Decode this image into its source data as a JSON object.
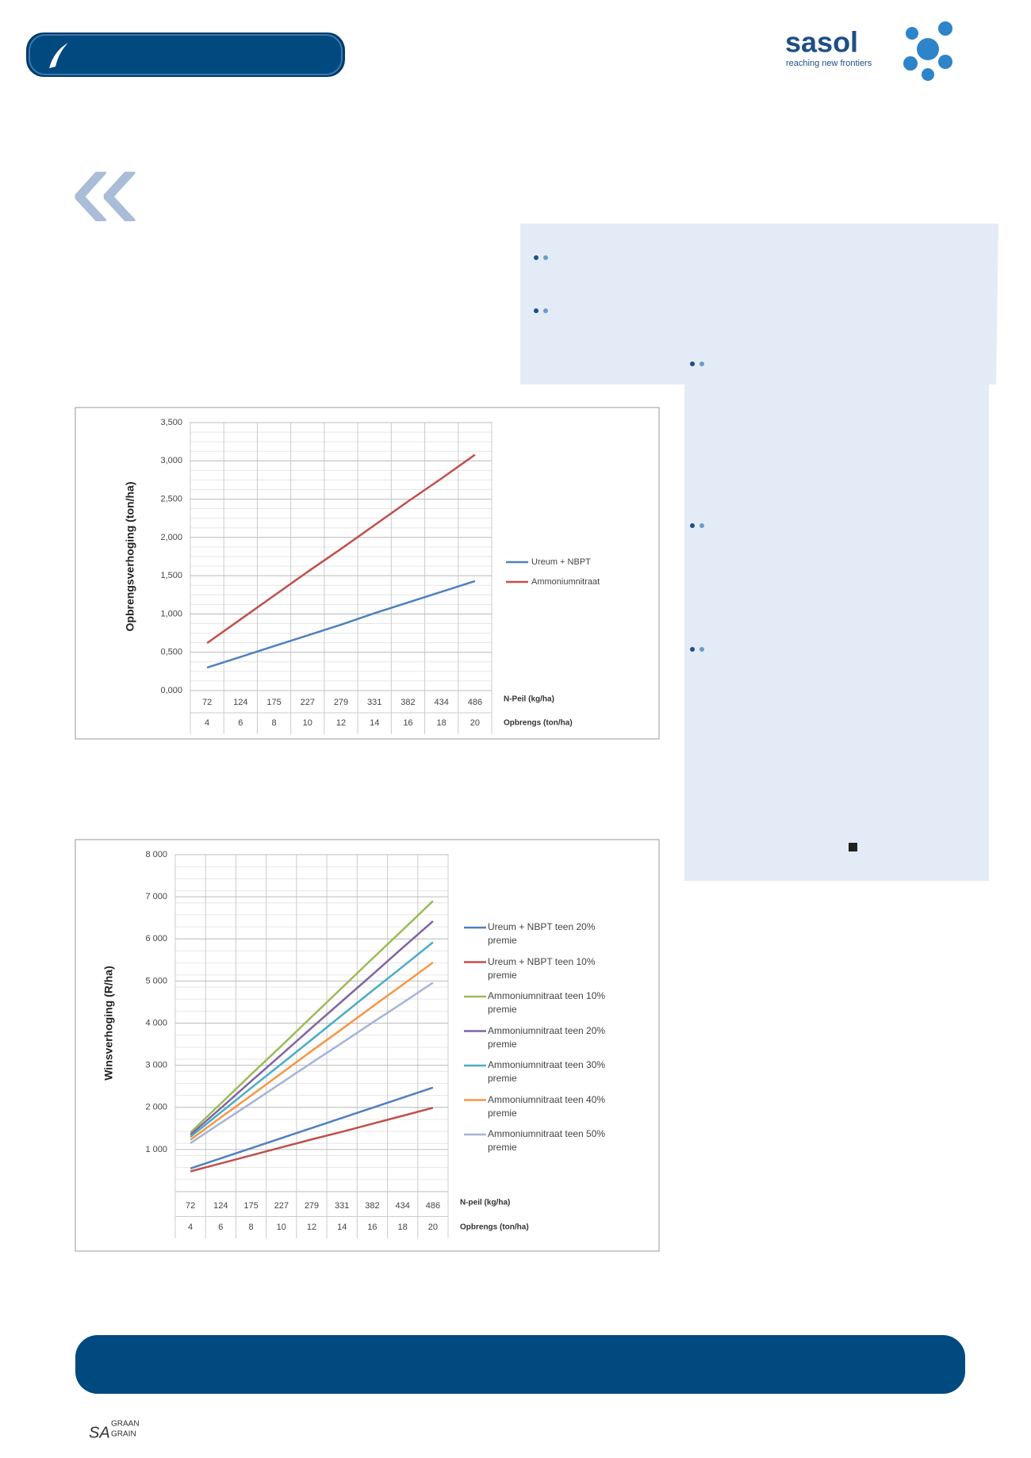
{
  "header": {
    "logo": "sasol",
    "tagline": "reaching new frontiers"
  },
  "footer": {
    "logo_sa": "SA",
    "logo_top": "GRAAN",
    "logo_bottom": "GRAIN"
  },
  "chart_data": [
    {
      "type": "line",
      "ylabel": "Opbrengsverhoging (ton/ha)",
      "categories": [
        "72",
        "124",
        "175",
        "227",
        "279",
        "331",
        "382",
        "434",
        "486"
      ],
      "categories2": [
        "4",
        "6",
        "8",
        "10",
        "12",
        "14",
        "16",
        "18",
        "20"
      ],
      "x_label": "N-Peil (kg/ha)",
      "x2_label": "Opbrengs (ton/ha)",
      "ylim": [
        0,
        3.5
      ],
      "yticks": [
        {
          "value": 0,
          "label": "0,000"
        },
        {
          "value": 0.5,
          "label": "0,500"
        },
        {
          "value": 1,
          "label": "1,000"
        },
        {
          "value": 1.5,
          "label": "1,500"
        },
        {
          "value": 2,
          "label": "2,000"
        },
        {
          "value": 2.5,
          "label": "2,500"
        },
        {
          "value": 3,
          "label": "3,000"
        },
        {
          "value": 3.5,
          "label": "3,500"
        }
      ],
      "grid": true,
      "series": [
        {
          "name": "Ureum + NBPT",
          "color": "#4f81bd",
          "values": [
            0.3,
            0.44,
            0.58,
            0.72,
            0.86,
            1.01,
            1.15,
            1.29,
            1.43
          ]
        },
        {
          "name": "Ammoniumnitraat",
          "color": "#c0504d",
          "values": [
            0.62,
            0.93,
            1.24,
            1.55,
            1.85,
            2.16,
            2.47,
            2.77,
            3.08
          ]
        }
      ]
    },
    {
      "type": "line",
      "ylabel": "Winsverhoging (R/ha)",
      "categories": [
        "72",
        "124",
        "175",
        "227",
        "279",
        "331",
        "382",
        "434",
        "486"
      ],
      "categories2": [
        "4",
        "6",
        "8",
        "10",
        "12",
        "14",
        "16",
        "18",
        "20"
      ],
      "x_label": "N-peil (kg/ha)",
      "x2_label": "Opbrengs (ton/ha)",
      "ylim": [
        0,
        8000
      ],
      "yticks": [
        {
          "value": 1000,
          "label": "1 000"
        },
        {
          "value": 2000,
          "label": "2 000"
        },
        {
          "value": 3000,
          "label": "3 000"
        },
        {
          "value": 4000,
          "label": "4 000"
        },
        {
          "value": 5000,
          "label": "5 000"
        },
        {
          "value": 6000,
          "label": "6 000"
        },
        {
          "value": 7000,
          "label": "7 000"
        },
        {
          "value": 8000,
          "label": "8 000"
        }
      ],
      "grid": true,
      "series": [
        {
          "name": "Ureum + NBPT teen 20% premie",
          "color": "#4f81bd",
          "values": [
            550,
            790,
            1030,
            1270,
            1510,
            1750,
            1990,
            2230,
            2470
          ]
        },
        {
          "name": "Ureum + NBPT teen 10% premie",
          "color": "#c0504d",
          "values": [
            480,
            670,
            860,
            1050,
            1240,
            1420,
            1610,
            1800,
            1990
          ]
        },
        {
          "name": "Ammoniumnitraat teen 10% premie",
          "color": "#9bbb59",
          "values": [
            1400,
            2090,
            2780,
            3460,
            4150,
            4840,
            5530,
            6210,
            6900
          ]
        },
        {
          "name": "Ammoniumnitraat teen 20% premie",
          "color": "#8064a2",
          "values": [
            1350,
            1980,
            2620,
            3250,
            3890,
            4520,
            5150,
            5790,
            6420
          ]
        },
        {
          "name": "Ammoniumnitraat teen 30% premie",
          "color": "#4bacc6",
          "values": [
            1300,
            1880,
            2460,
            3030,
            3610,
            4190,
            4770,
            5340,
            5920
          ]
        },
        {
          "name": "Ammoniumnitraat teen 40% premie",
          "color": "#f79646",
          "values": [
            1230,
            1760,
            2280,
            2810,
            3340,
            3860,
            4390,
            4910,
            5440
          ]
        },
        {
          "name": "Ammoniumnitraat teen 50% premie",
          "color": "#a5b4d8",
          "values": [
            1150,
            1630,
            2100,
            2580,
            3060,
            3530,
            4010,
            4480,
            4960
          ]
        }
      ]
    }
  ]
}
